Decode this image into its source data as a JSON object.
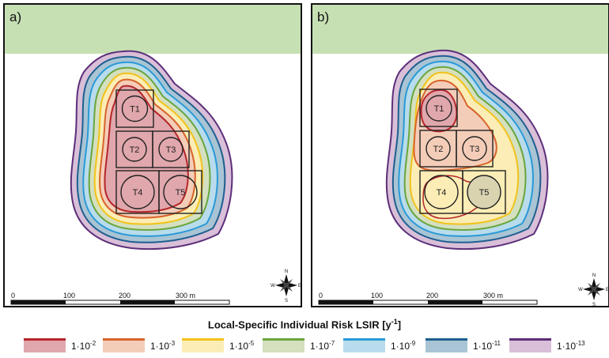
{
  "panels": [
    {
      "label": "a)",
      "tanks": [
        "T1",
        "T2",
        "T3",
        "T4",
        "T5"
      ]
    },
    {
      "label": "b)",
      "tanks": [
        "T1",
        "T2",
        "T3",
        "T4",
        "T5"
      ]
    }
  ],
  "scalebar": {
    "ticks": [
      "0",
      "100",
      "200",
      "300 m"
    ]
  },
  "north_arrow": {
    "letters": [
      "N",
      "W",
      "E",
      "S"
    ]
  },
  "legend": {
    "title_prefix": "Local-Specific Individual Risk LSIR [y",
    "title_exp": "-1",
    "title_suffix": "]",
    "items": [
      {
        "base": "1·10",
        "exp": "-2",
        "line": "#b5262b",
        "fill": "#e0a7ac"
      },
      {
        "base": "1·10",
        "exp": "-3",
        "line": "#d7642c",
        "fill": "#f4cdb8"
      },
      {
        "base": "1·10",
        "exp": "-5",
        "line": "#f2c21b",
        "fill": "#fbedb5"
      },
      {
        "base": "1·10",
        "exp": "-7",
        "line": "#6aa53d",
        "fill": "#d4e0bf"
      },
      {
        "base": "1·10",
        "exp": "-9",
        "line": "#2a9ad6",
        "fill": "#b8dcec"
      },
      {
        "base": "1·10",
        "exp": "-11",
        "line": "#1f5f8f",
        "fill": "#a9c4d4"
      },
      {
        "base": "1·10",
        "exp": "-13",
        "line": "#5c2f7a",
        "fill": "#d9bfd8"
      }
    ]
  },
  "colors": {
    "green_band": "#c6e0b4"
  }
}
